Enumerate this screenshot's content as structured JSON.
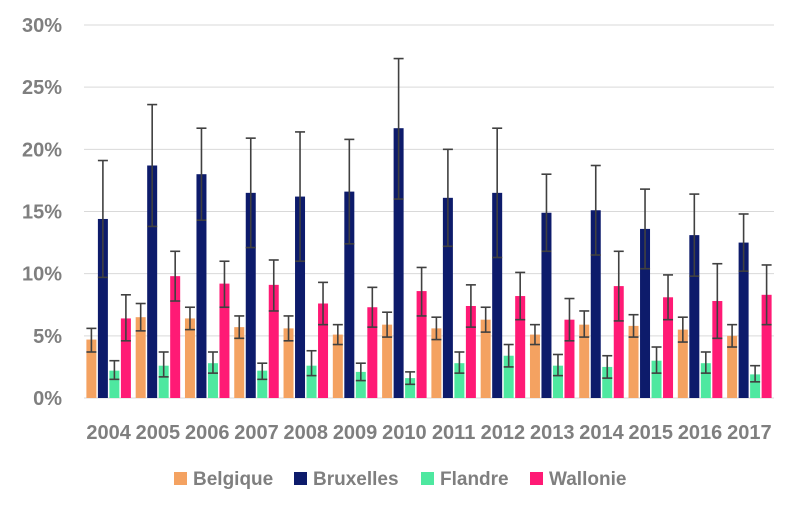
{
  "chart_data": {
    "type": "bar",
    "title": "",
    "xlabel": "",
    "ylabel": "",
    "ylim": [
      0,
      30
    ],
    "yticks": [
      "0%",
      "5%",
      "10%",
      "15%",
      "20%",
      "25%",
      "30%"
    ],
    "ytick_values": [
      0,
      5,
      10,
      15,
      20,
      25,
      30
    ],
    "grid": true,
    "legend_position": "bottom",
    "categories": [
      "2004",
      "2005",
      "2006",
      "2007",
      "2008",
      "2009",
      "2010",
      "2011",
      "2012",
      "2013",
      "2014",
      "2015",
      "2016",
      "2017"
    ],
    "series": [
      {
        "name": "Belgique",
        "color": "#f4a261",
        "values": [
          4.7,
          6.5,
          6.4,
          5.7,
          5.6,
          5.1,
          5.9,
          5.6,
          6.3,
          5.1,
          5.9,
          5.8,
          5.5,
          5.0
        ],
        "err_low": [
          3.7,
          5.4,
          5.5,
          4.8,
          4.6,
          4.3,
          4.9,
          4.7,
          5.3,
          4.3,
          4.9,
          4.9,
          4.5,
          4.1
        ],
        "err_high": [
          5.6,
          7.6,
          7.3,
          6.6,
          6.6,
          5.9,
          6.9,
          6.5,
          7.3,
          5.9,
          7.0,
          6.7,
          6.5,
          5.9
        ]
      },
      {
        "name": "Bruxelles",
        "color": "#0d1b6b",
        "values": [
          14.4,
          18.7,
          18.0,
          16.5,
          16.2,
          16.6,
          21.7,
          16.1,
          16.5,
          14.9,
          15.1,
          13.6,
          13.1,
          12.5
        ],
        "err_low": [
          9.7,
          13.8,
          14.3,
          12.1,
          11.0,
          12.4,
          16.0,
          12.2,
          11.3,
          11.8,
          11.5,
          10.4,
          9.8,
          10.2
        ],
        "err_high": [
          19.1,
          23.6,
          21.7,
          20.9,
          21.4,
          20.8,
          27.3,
          20.0,
          21.7,
          18.0,
          18.7,
          16.8,
          16.4,
          14.8
        ]
      },
      {
        "name": "Flandre",
        "color": "#4ee8a0",
        "values": [
          2.2,
          2.6,
          2.8,
          2.2,
          2.6,
          2.1,
          1.6,
          2.8,
          3.4,
          2.6,
          2.5,
          3.0,
          2.8,
          1.9
        ],
        "err_low": [
          1.5,
          1.7,
          2.0,
          1.5,
          1.8,
          1.4,
          1.1,
          2.0,
          2.5,
          1.8,
          1.6,
          2.0,
          2.0,
          1.3
        ],
        "err_high": [
          3.0,
          3.7,
          3.7,
          2.8,
          3.8,
          2.8,
          2.1,
          3.7,
          4.3,
          3.5,
          3.4,
          4.1,
          3.7,
          2.6
        ]
      },
      {
        "name": "Wallonie",
        "color": "#ff1a75",
        "values": [
          6.4,
          9.8,
          9.2,
          9.1,
          7.6,
          7.3,
          8.6,
          7.4,
          8.2,
          6.3,
          9.0,
          8.1,
          7.8,
          8.3
        ],
        "err_low": [
          4.6,
          7.8,
          7.3,
          7.0,
          5.9,
          5.7,
          6.6,
          5.7,
          6.3,
          4.6,
          6.2,
          6.3,
          4.8,
          5.9
        ],
        "err_high": [
          8.3,
          11.8,
          11.0,
          11.1,
          9.3,
          8.9,
          10.5,
          9.1,
          10.1,
          8.0,
          11.8,
          9.9,
          10.8,
          10.7
        ]
      }
    ]
  }
}
